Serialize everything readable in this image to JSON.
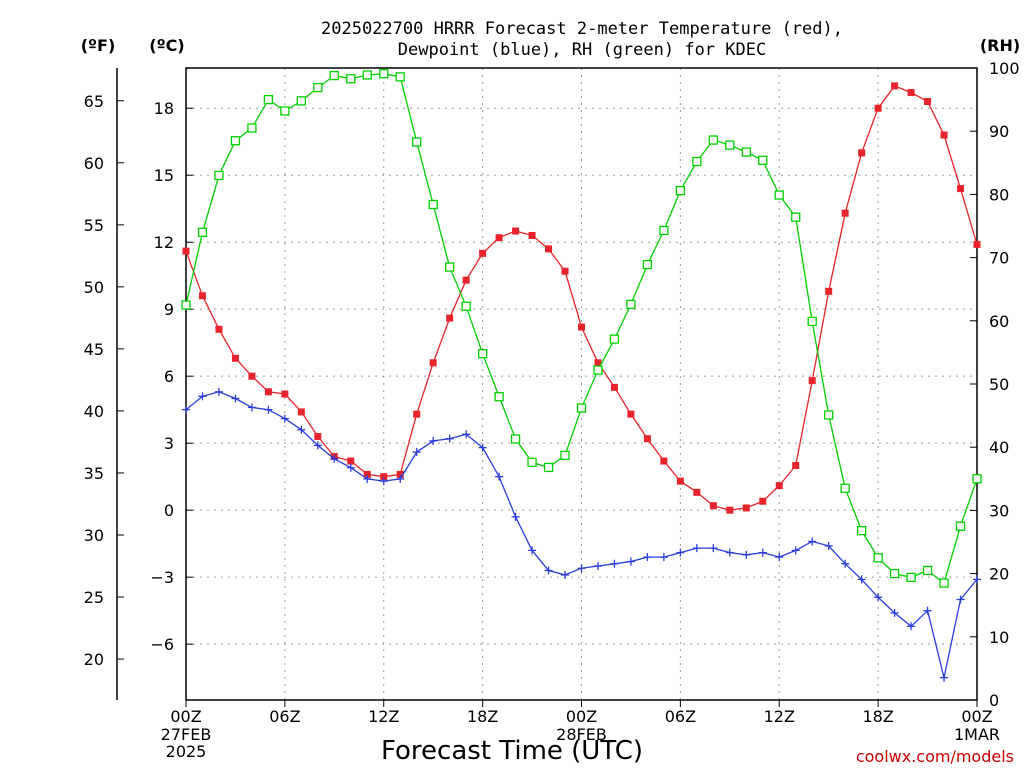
{
  "chart_data": {
    "type": "line",
    "title_line1": "2025022700 HRRR Forecast 2-meter Temperature (red),",
    "title_line2": "Dewpoint (blue), RH (green) for KDEC",
    "xlabel": "Forecast Time (UTC)",
    "credit": "coolwx.com/models",
    "units": {
      "fahrenheit": "(ºF)",
      "celsius": "(ºC)",
      "rh": "(RH)"
    },
    "x_hours": [
      0,
      1,
      2,
      3,
      4,
      5,
      6,
      7,
      8,
      9,
      10,
      11,
      12,
      13,
      14,
      15,
      16,
      17,
      18,
      19,
      20,
      21,
      22,
      23,
      24,
      25,
      26,
      27,
      28,
      29,
      30,
      31,
      32,
      33,
      34,
      35,
      36,
      37,
      38,
      39,
      40,
      41,
      42,
      43,
      44,
      45,
      46,
      47,
      48
    ],
    "xlim": [
      0,
      48
    ],
    "x_ticks": [
      {
        "hour": 0,
        "label": "00Z"
      },
      {
        "hour": 6,
        "label": "06Z"
      },
      {
        "hour": 12,
        "label": "12Z"
      },
      {
        "hour": 18,
        "label": "18Z"
      },
      {
        "hour": 24,
        "label": "00Z"
      },
      {
        "hour": 30,
        "label": "06Z"
      },
      {
        "hour": 36,
        "label": "12Z"
      },
      {
        "hour": 42,
        "label": "18Z"
      },
      {
        "hour": 48,
        "label": "00Z"
      }
    ],
    "date_labels": [
      {
        "hour": 0,
        "line1": "27FEB",
        "line2": "2025"
      },
      {
        "hour": 24,
        "line1": "28FEB",
        "line2": ""
      },
      {
        "hour": 48,
        "line1": "1MAR",
        "line2": ""
      }
    ],
    "celsius_axis": {
      "ylim": [
        -8.5,
        19.8
      ],
      "ticks": [
        18,
        15,
        12,
        9,
        6,
        3,
        0,
        -3,
        -6
      ],
      "tick_labels": [
        "18",
        "15",
        "12",
        "9",
        "6",
        "3",
        "0",
        "−3",
        "−6"
      ]
    },
    "fahrenheit_axis": {
      "ticks": [
        65,
        60,
        55,
        50,
        45,
        40,
        35,
        30,
        25,
        20
      ],
      "tick_labels": [
        "65",
        "60",
        "55",
        "50",
        "45",
        "40",
        "35",
        "30",
        "25",
        "20"
      ]
    },
    "rh_axis": {
      "ylim": [
        0,
        100
      ],
      "ticks": [
        100,
        90,
        80,
        70,
        60,
        50,
        40,
        30,
        20,
        10,
        0
      ],
      "tick_labels": [
        "100",
        "90",
        "80",
        "70",
        "60",
        "50",
        "40",
        "30",
        "20",
        "10",
        "0"
      ]
    },
    "grid": true,
    "series": [
      {
        "key": "temperature",
        "axis": "celsius",
        "color": "#e8232a",
        "marker": "filled-square",
        "values": [
          11.6,
          9.6,
          8.1,
          6.8,
          6.0,
          5.3,
          5.2,
          4.4,
          3.3,
          2.4,
          2.2,
          1.6,
          1.5,
          1.6,
          4.3,
          6.6,
          8.6,
          10.3,
          11.5,
          12.2,
          12.5,
          12.3,
          11.7,
          10.7,
          8.2,
          6.6,
          5.5,
          4.3,
          3.2,
          2.2,
          1.3,
          0.8,
          0.2,
          0.0,
          0.1,
          0.4,
          1.1,
          2.0,
          5.8,
          9.8,
          13.3,
          16.0,
          18.0,
          19.0,
          18.7,
          18.3,
          16.8,
          14.4,
          11.9
        ]
      },
      {
        "key": "dewpoint",
        "axis": "celsius",
        "color": "#2a3cdc",
        "marker": "plus",
        "values": [
          4.5,
          5.1,
          5.3,
          5.0,
          4.6,
          4.5,
          4.1,
          3.6,
          2.9,
          2.3,
          1.9,
          1.4,
          1.3,
          1.4,
          2.6,
          3.1,
          3.2,
          3.4,
          2.8,
          1.5,
          -0.3,
          -1.8,
          -2.7,
          -2.9,
          -2.6,
          -2.5,
          -2.4,
          -2.3,
          -2.1,
          -2.1,
          -1.9,
          -1.7,
          -1.7,
          -1.9,
          -2.0,
          -1.9,
          -2.1,
          -1.8,
          -1.4,
          -1.6,
          -2.4,
          -3.1,
          -3.9,
          -4.6,
          -5.2,
          -4.5,
          -7.5,
          -4.0,
          -3.1
        ]
      },
      {
        "key": "rh",
        "axis": "rh",
        "color": "#00d000",
        "marker": "open-square",
        "values": [
          62.5,
          74,
          83,
          88.5,
          90.5,
          95,
          93.2,
          94.8,
          96.9,
          98.8,
          98.3,
          98.9,
          99.1,
          98.6,
          88.3,
          78.4,
          68.5,
          62.3,
          54.8,
          48.0,
          41.3,
          37.6,
          36.8,
          38.7,
          46.2,
          52.2,
          57.1,
          62.6,
          68.9,
          74.3,
          80.6,
          85.2,
          88.6,
          87.8,
          86.7,
          85.4,
          79.9,
          76.4,
          59.9,
          45.1,
          33.5,
          26.8,
          22.5,
          20.0,
          19.4,
          20.5,
          18.5,
          27.5,
          35.0
        ]
      }
    ]
  }
}
